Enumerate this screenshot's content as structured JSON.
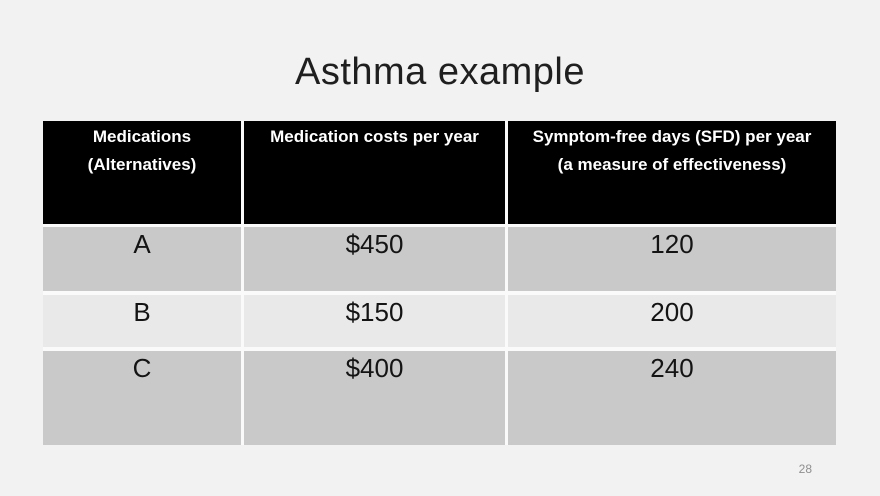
{
  "title": "Asthma example",
  "page_number": "28",
  "colors": {
    "slide_background": "#f2f2f2",
    "header_background": "#000000",
    "header_text": "#ffffff",
    "row_gray": "#c9c9c9",
    "row_light": "#e9e9e9",
    "cell_divider": "#fafafa",
    "title_text": "#1f1f1f",
    "body_text": "#141414",
    "page_number_text": "#8f8f8f"
  },
  "table": {
    "header": [
      {
        "lines": [
          "Medications",
          "(Alternatives)"
        ]
      },
      {
        "lines": [
          "Medication costs per year"
        ]
      },
      {
        "lines": [
          "Symptom-free days (SFD) per year",
          "(a measure of effectiveness)"
        ]
      }
    ],
    "rows": [
      {
        "medication": "A",
        "cost": "$450",
        "sfd": "120"
      },
      {
        "medication": "B",
        "cost": "$150",
        "sfd": "200"
      },
      {
        "medication": "C",
        "cost": "$400",
        "sfd": "240"
      }
    ]
  }
}
